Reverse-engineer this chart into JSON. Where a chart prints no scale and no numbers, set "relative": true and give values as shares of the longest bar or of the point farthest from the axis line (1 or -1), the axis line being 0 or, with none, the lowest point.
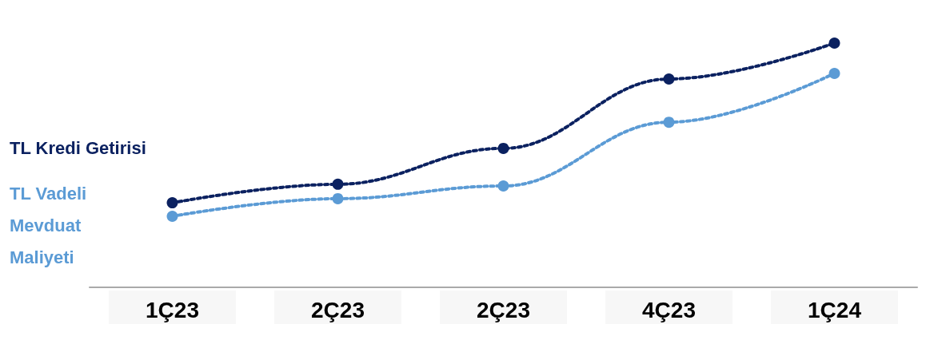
{
  "chart_data": {
    "type": "line",
    "relative": true,
    "categories": [
      "1Ç23",
      "2Ç23",
      "2Ç23",
      "4Ç23",
      "1Ç24"
    ],
    "series": [
      {
        "name": "TL Kredi Getirisi",
        "color": "#0b2160",
        "values": [
          0.346,
          0.422,
          0.569,
          0.853,
          1
        ]
      },
      {
        "name": "TL Vadeli Mevduat Maliyeti",
        "color": "#5b9bd5",
        "values": [
          0.291,
          0.363,
          0.415,
          0.676,
          0.876
        ]
      }
    ],
    "marker": "circle",
    "line_style": "dotted",
    "grid": false,
    "legend": false
  }
}
